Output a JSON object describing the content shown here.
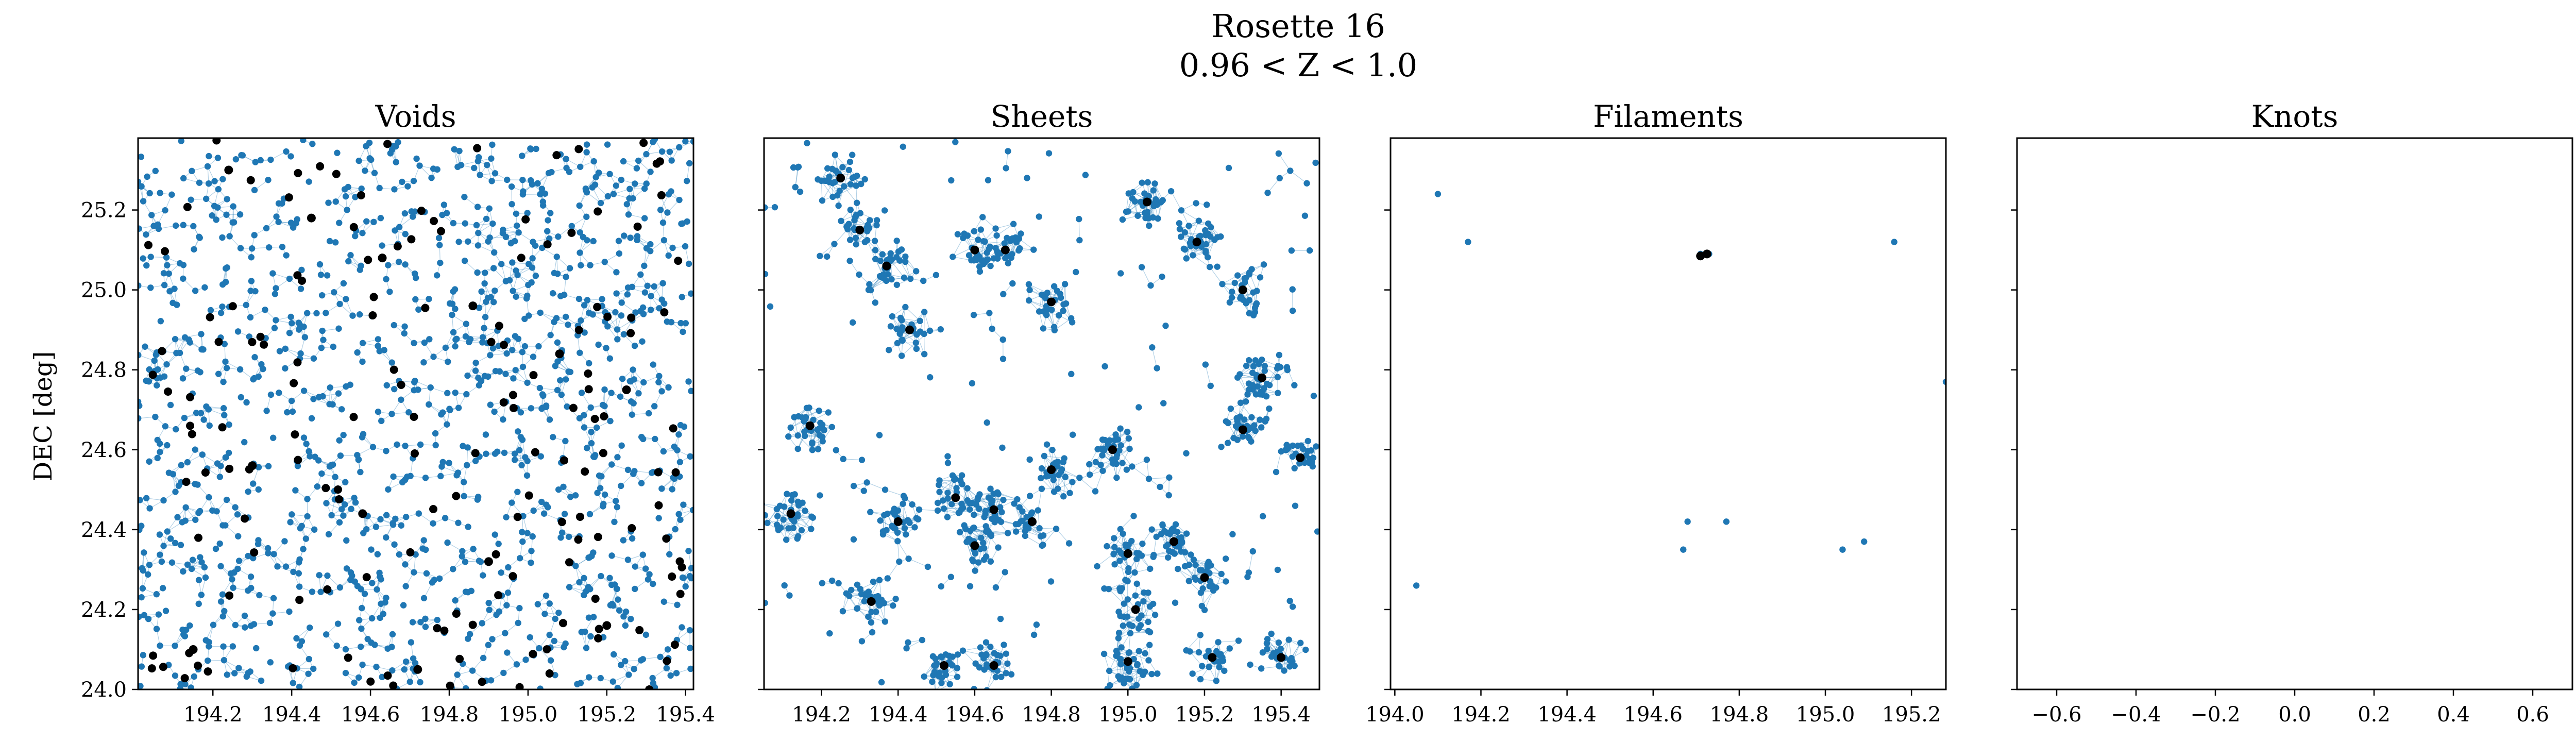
{
  "figure": {
    "title": "Rosette 16",
    "subtitle": "0.96 < Z < 1.0",
    "ylabel": "DEC [deg]"
  },
  "colors": {
    "nodes": "#1f77b4",
    "edges": "#1f77b4",
    "centers": "#000000",
    "axes": "#000000"
  },
  "chart_data": [
    {
      "type": "scatter",
      "title": "Voids",
      "xlabel": "",
      "ylabel": "DEC [deg]",
      "xlim": [
        194.01,
        195.42
      ],
      "ylim": [
        24.0,
        25.38
      ],
      "xticks": [
        "194.2",
        "194.4",
        "194.6",
        "194.8",
        "195.0",
        "195.2",
        "195.4"
      ],
      "xtick_values": [
        194.2,
        194.4,
        194.6,
        194.8,
        195.0,
        195.2,
        195.4
      ],
      "yticks": [
        "24.0",
        "24.2",
        "24.4",
        "24.6",
        "24.8",
        "25.0",
        "25.2"
      ],
      "ytick_values": [
        24.0,
        24.2,
        24.4,
        24.6,
        24.8,
        25.0,
        25.2
      ],
      "density": "dense",
      "series": [
        {
          "name": "",
          "role": "nodes",
          "points": [
            [
              194.05,
              25.35
            ],
            [
              194.12,
              25.2
            ],
            [
              194.2,
              25.05
            ],
            [
              194.35,
              24.9
            ],
            [
              194.5,
              24.75
            ],
            [
              194.7,
              24.6
            ],
            [
              194.9,
              24.45
            ],
            [
              195.1,
              24.3
            ],
            [
              195.3,
              24.15
            ]
          ]
        },
        {
          "name": "",
          "role": "centers",
          "points": [
            [
              194.24,
              25.3
            ],
            [
              194.45,
              25.18
            ],
            [
              194.63,
              25.08
            ],
            [
              194.86,
              24.96
            ],
            [
              195.08,
              24.84
            ],
            [
              195.25,
              24.75
            ],
            [
              194.3,
              24.56
            ],
            [
              194.58,
              24.44
            ],
            [
              194.9,
              24.32
            ],
            [
              195.2,
              24.16
            ],
            [
              194.15,
              24.1
            ],
            [
              194.72,
              24.05
            ]
          ]
        }
      ]
    },
    {
      "type": "scatter",
      "title": "Sheets",
      "xlabel": "",
      "ylabel": "",
      "xlim": [
        194.05,
        195.5
      ],
      "ylim": [
        24.0,
        25.38
      ],
      "xticks": [
        "194.2",
        "194.4",
        "194.6",
        "194.8",
        "195.0",
        "195.2",
        "195.4"
      ],
      "xtick_values": [
        194.2,
        194.4,
        194.6,
        194.8,
        195.0,
        195.2,
        195.4
      ],
      "density": "medium",
      "series": [
        {
          "name": "",
          "role": "nodes",
          "points": [
            [
              194.25,
              25.28
            ],
            [
              194.3,
              25.15
            ],
            [
              194.6,
              25.1
            ],
            [
              194.8,
              24.97
            ],
            [
              195.2,
              25.12
            ],
            [
              195.35,
              24.78
            ],
            [
              194.55,
              24.48
            ],
            [
              195.1,
              24.37
            ],
            [
              194.35,
              24.22
            ]
          ]
        },
        {
          "name": "",
          "role": "centers",
          "points": [
            [
              194.25,
              25.28
            ],
            [
              194.3,
              25.15
            ],
            [
              194.37,
              25.06
            ],
            [
              194.6,
              25.1
            ],
            [
              194.68,
              25.1
            ],
            [
              194.8,
              24.97
            ],
            [
              195.05,
              25.22
            ],
            [
              195.18,
              25.12
            ],
            [
              195.3,
              25.0
            ],
            [
              194.43,
              24.9
            ],
            [
              195.35,
              24.78
            ],
            [
              194.17,
              24.66
            ],
            [
              195.3,
              24.65
            ],
            [
              195.45,
              24.58
            ],
            [
              194.96,
              24.6
            ],
            [
              194.55,
              24.48
            ],
            [
              194.65,
              24.45
            ],
            [
              194.8,
              24.55
            ],
            [
              194.12,
              24.44
            ],
            [
              194.4,
              24.42
            ],
            [
              194.75,
              24.42
            ],
            [
              195.0,
              24.34
            ],
            [
              195.12,
              24.37
            ],
            [
              195.2,
              24.28
            ],
            [
              194.6,
              24.36
            ],
            [
              194.33,
              24.22
            ],
            [
              195.02,
              24.2
            ],
            [
              194.52,
              24.06
            ],
            [
              194.65,
              24.06
            ],
            [
              195.0,
              24.07
            ],
            [
              195.22,
              24.08
            ],
            [
              195.4,
              24.08
            ]
          ]
        }
      ]
    },
    {
      "type": "scatter",
      "title": "Filaments",
      "xlabel": "",
      "ylabel": "",
      "xlim": [
        193.99,
        195.28
      ],
      "ylim": [
        24.0,
        25.38
      ],
      "xticks": [
        "194.0",
        "194.2",
        "194.4",
        "194.6",
        "194.8",
        "195.0",
        "195.2"
      ],
      "xtick_values": [
        194.0,
        194.2,
        194.4,
        194.6,
        194.8,
        195.0,
        195.2
      ],
      "series": [
        {
          "name": "",
          "role": "nodes",
          "points": [
            [
              194.1,
              25.24
            ],
            [
              194.17,
              25.12
            ],
            [
              194.71,
              25.09
            ],
            [
              194.73,
              25.09
            ],
            [
              195.16,
              25.12
            ],
            [
              195.28,
              24.77
            ],
            [
              194.68,
              24.42
            ],
            [
              194.77,
              24.42
            ],
            [
              194.67,
              24.35
            ],
            [
              195.04,
              24.35
            ],
            [
              195.09,
              24.37
            ],
            [
              194.05,
              24.26
            ]
          ]
        },
        {
          "name": "",
          "role": "centers",
          "points": [
            [
              194.71,
              25.085
            ],
            [
              194.725,
              25.09
            ]
          ]
        }
      ]
    },
    {
      "type": "scatter",
      "title": "Knots",
      "xlabel": "",
      "ylabel": "",
      "xlim": [
        -0.7,
        0.7
      ],
      "ylim": [
        24.0,
        25.38
      ],
      "xticks": [
        "−0.6",
        "−0.4",
        "−0.2",
        "0.0",
        "0.2",
        "0.4",
        "0.6"
      ],
      "xtick_values": [
        -0.6,
        -0.4,
        -0.2,
        0.0,
        0.2,
        0.4,
        0.6
      ],
      "series": []
    }
  ]
}
